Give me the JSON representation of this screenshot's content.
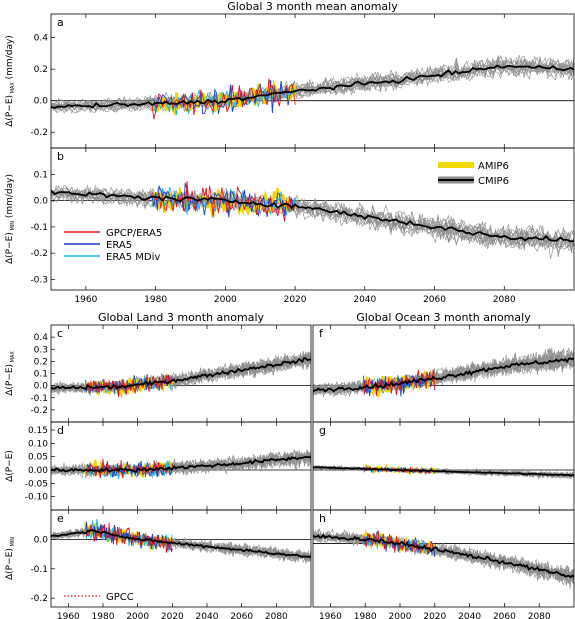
{
  "colors": {
    "cmip_line": "#8c8c8c",
    "cmip_mean": "#000000",
    "amip": "#f2d600",
    "gpcp": "#e0161c",
    "era5": "#1b3fc9",
    "mdiv": "#16b8e8",
    "gpcc": "#e0161c"
  },
  "legend_top": [
    {
      "label": "AMIP6",
      "kind": "amip"
    },
    {
      "label": "CMIP6",
      "kind": "cmip"
    }
  ],
  "legend_obs": [
    {
      "label": "GPCP/ERA5",
      "color": "#e0161c"
    },
    {
      "label": "ERA5",
      "color": "#1b3fc9"
    },
    {
      "label": "ERA5  MDiv",
      "color": "#16b8e8"
    }
  ],
  "legend_gpcc": {
    "label": "GPCC",
    "color": "#e0161c"
  },
  "chart_data": [
    {
      "id": "a",
      "type": "line",
      "title": "Global 3 month mean anomaly",
      "ylabel": "Δ(P−E)",
      "ylabel_sub": "MAX",
      "ylabel_unit": "(mm/day)",
      "xlim": [
        1950,
        2100
      ],
      "ylim": [
        -0.3,
        0.55
      ],
      "yticks": [
        -0.2,
        0.0,
        0.2,
        0.4
      ],
      "ytick_labels": [
        "-0.2",
        "0.0",
        "0.2",
        "0.4"
      ],
      "trend": [
        [
          1950,
          -0.04
        ],
        [
          1980,
          -0.02
        ],
        [
          2000,
          0.0
        ],
        [
          2020,
          0.06
        ],
        [
          2050,
          0.13
        ],
        [
          2080,
          0.22
        ],
        [
          2100,
          0.2
        ]
      ],
      "spread": 0.11,
      "obs_amp": 0.13,
      "obs_start": 1979,
      "obs_end": 2020
    },
    {
      "id": "b",
      "type": "line",
      "title": "",
      "ylabel": "Δ(P−E)",
      "ylabel_sub": "MIN",
      "ylabel_unit": "(mm/day)",
      "xlim": [
        1950,
        2100
      ],
      "ylim": [
        -0.34,
        0.2
      ],
      "yticks": [
        -0.3,
        -0.2,
        -0.1,
        0.0,
        0.1
      ],
      "ytick_labels": [
        "-0.3",
        "-0.2",
        "-0.1",
        "0.0",
        "0.1"
      ],
      "trend": [
        [
          1950,
          0.03
        ],
        [
          1980,
          0.01
        ],
        [
          2000,
          0.0
        ],
        [
          2020,
          -0.02
        ],
        [
          2050,
          -0.08
        ],
        [
          2080,
          -0.14
        ],
        [
          2100,
          -0.15
        ]
      ],
      "spread": 0.08,
      "obs_amp": 0.09,
      "obs_start": 1979,
      "obs_end": 2020,
      "xticks": [
        1960,
        1980,
        2000,
        2020,
        2040,
        2060,
        2080
      ],
      "xtick_labels": [
        "1960",
        "1980",
        "2000",
        "2020",
        "2040",
        "2060",
        "2080"
      ]
    },
    {
      "id": "c",
      "type": "line",
      "title": "Global Land 3 month  anomaly",
      "ylabel": "Δ(P−E)",
      "ylabel_sub": "MAX",
      "xlim": [
        1950,
        2100
      ],
      "ylim": [
        -0.3,
        0.5
      ],
      "yticks": [
        -0.2,
        -0.1,
        0.0,
        0.1,
        0.2,
        0.3,
        0.4
      ],
      "ytick_labels": [
        "-0.2",
        "-0.1",
        "0.0",
        "0.1",
        "0.2",
        "0.3",
        "0.4"
      ],
      "trend": [
        [
          1950,
          -0.02
        ],
        [
          1990,
          -0.01
        ],
        [
          2020,
          0.04
        ],
        [
          2060,
          0.13
        ],
        [
          2100,
          0.22
        ]
      ],
      "spread": 0.12,
      "obs_amp": 0.1,
      "obs_start": 1970,
      "obs_end": 2020
    },
    {
      "id": "d",
      "type": "line",
      "title": "",
      "ylabel": "Δ(P−E)",
      "ylabel_sub": "",
      "xlim": [
        1950,
        2100
      ],
      "ylim": [
        -0.15,
        0.18
      ],
      "yticks": [
        -0.1,
        -0.05,
        0.0,
        0.05,
        0.1,
        0.15
      ],
      "ytick_labels": [
        "-0.10",
        "-0.05",
        "0.00",
        "0.05",
        "0.10",
        "0.15"
      ],
      "trend": [
        [
          1950,
          0.0
        ],
        [
          2000,
          0.0
        ],
        [
          2050,
          0.02
        ],
        [
          2100,
          0.05
        ]
      ],
      "spread": 0.05,
      "obs_amp": 0.05,
      "obs_start": 1970,
      "obs_end": 2020
    },
    {
      "id": "e",
      "type": "line",
      "title": "",
      "ylabel": "Δ(P−E)",
      "ylabel_sub": "MIN",
      "xlim": [
        1950,
        2100
      ],
      "ylim": [
        -0.23,
        0.1
      ],
      "yticks": [
        -0.2,
        -0.1,
        0.0
      ],
      "ytick_labels": [
        "-0.2",
        "-0.1",
        "0.0"
      ],
      "trend": [
        [
          1950,
          0.01
        ],
        [
          1975,
          0.03
        ],
        [
          2000,
          0.0
        ],
        [
          2050,
          -0.03
        ],
        [
          2100,
          -0.06
        ]
      ],
      "spread": 0.035,
      "obs_amp": 0.05,
      "obs_start": 1970,
      "obs_end": 2020,
      "xticks": [
        1960,
        1980,
        2000,
        2020,
        2040,
        2060,
        2080
      ],
      "xtick_labels": [
        "1960",
        "1980",
        "2000",
        "2020",
        "2040",
        "2060",
        "2080"
      ]
    },
    {
      "id": "f",
      "type": "line",
      "title": "Global Ocean 3 month  anomaly",
      "ylabel": "",
      "ylabel_sub": "",
      "xlim": [
        1950,
        2100
      ],
      "ylim": [
        -0.3,
        0.5
      ],
      "trend": [
        [
          1950,
          -0.04
        ],
        [
          1990,
          0.0
        ],
        [
          2020,
          0.06
        ],
        [
          2060,
          0.16
        ],
        [
          2100,
          0.22
        ]
      ],
      "spread": 0.14,
      "obs_amp": 0.13,
      "obs_start": 1979,
      "obs_end": 2020
    },
    {
      "id": "g",
      "type": "line",
      "title": "",
      "ylabel": "",
      "ylabel_sub": "",
      "xlim": [
        1950,
        2100
      ],
      "ylim": [
        -0.15,
        0.18
      ],
      "trend": [
        [
          1950,
          0.01
        ],
        [
          2000,
          0.0
        ],
        [
          2050,
          -0.01
        ],
        [
          2100,
          -0.02
        ]
      ],
      "spread": 0.02,
      "obs_amp": 0.015,
      "obs_start": 1979,
      "obs_end": 2020
    },
    {
      "id": "h",
      "type": "line",
      "title": "",
      "ylabel": "",
      "ylabel_sub": "",
      "xlim": [
        1950,
        2100
      ],
      "ylim": [
        -0.34,
        0.18
      ],
      "trend": [
        [
          1950,
          0.04
        ],
        [
          1985,
          0.02
        ],
        [
          2020,
          -0.03
        ],
        [
          2060,
          -0.1
        ],
        [
          2100,
          -0.18
        ]
      ],
      "spread": 0.08,
      "obs_amp": 0.07,
      "obs_start": 1979,
      "obs_end": 2020,
      "xticks": [
        1960,
        1980,
        2000,
        2020,
        2040,
        2060,
        2080
      ],
      "xtick_labels": [
        "1960",
        "1980",
        "2000",
        "2020",
        "2040",
        "2060",
        "2080"
      ]
    }
  ]
}
